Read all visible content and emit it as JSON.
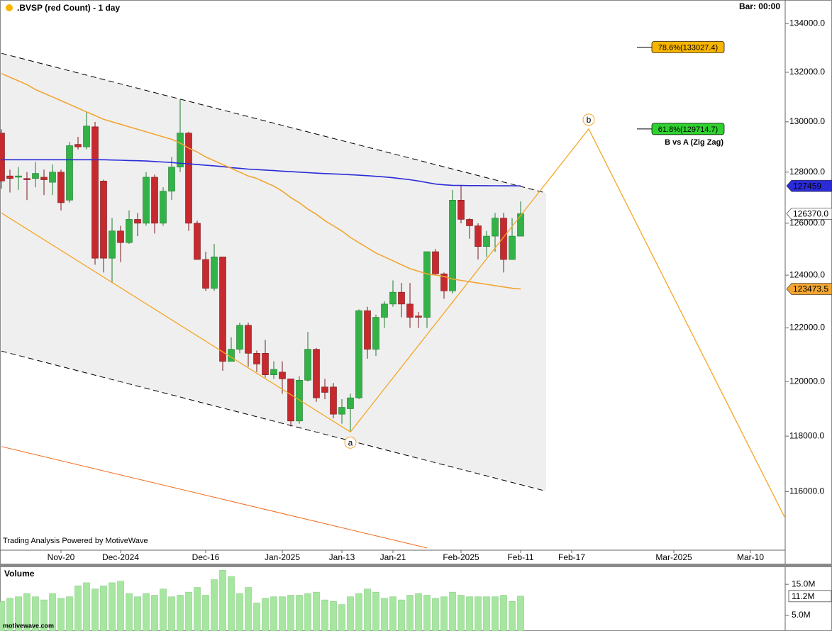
{
  "chart_data": [
    {
      "type": "candlestick",
      "title": ".BVSP (red Count) - 1 day",
      "bar_label": "Bar: 00:00",
      "footer": "Trading Analysis Powered by MotiveWave",
      "log_scale": true,
      "ylim": [
        113924,
        134973
      ],
      "yticks": [
        {
          "value": 116000,
          "label": "116000.0"
        },
        {
          "value": 118000,
          "label": "118000.0"
        },
        {
          "value": 120000,
          "label": "120000.0"
        },
        {
          "value": 122000,
          "label": "122000.0"
        },
        {
          "value": 124000,
          "label": "124000.0"
        },
        {
          "value": 126000,
          "label": "126000.0"
        },
        {
          "value": 128000,
          "label": "128000.0"
        },
        {
          "value": 130000,
          "label": "130000.0"
        },
        {
          "value": 132000,
          "label": "132000.0"
        },
        {
          "value": 134000,
          "label": "134000.0"
        }
      ],
      "categories": [
        null,
        null,
        null,
        null,
        null,
        null,
        null,
        "Nov-20",
        null,
        null,
        null,
        null,
        null,
        null,
        "Dec-2024",
        null,
        null,
        null,
        null,
        null,
        null,
        null,
        null,
        null,
        "Dec-16",
        null,
        null,
        null,
        null,
        null,
        null,
        null,
        null,
        "Jan-2025",
        null,
        null,
        null,
        null,
        null,
        null,
        "Jan-13",
        null,
        null,
        null,
        null,
        null,
        "Jan-21",
        null,
        null,
        null,
        null,
        null,
        null,
        null,
        "Feb-2025",
        null,
        null,
        null,
        null,
        null,
        null,
        "Feb-11",
        null,
        null,
        null,
        null,
        null,
        "Feb-17",
        null,
        null,
        null,
        null,
        null,
        null,
        null,
        null,
        null,
        null,
        null,
        "Mar-2025",
        null,
        null,
        null,
        null,
        null,
        null,
        null,
        null,
        "Mar-10",
        null,
        null,
        null,
        null
      ],
      "open": [
        129550,
        127850,
        127800,
        127750,
        127750,
        127800,
        127600,
        128000,
        126900,
        129100,
        129000,
        129800,
        127650,
        124650,
        125700,
        125250,
        126150,
        126000,
        127800,
        126000,
        127250,
        128200,
        129550,
        126000,
        124600,
        123500,
        124700,
        120750,
        121200,
        122100,
        121050,
        121050,
        120250,
        120350,
        120100,
        118550,
        120050,
        121200,
        119800,
        119800,
        118800,
        119000,
        119400,
        122650,
        121200,
        122400,
        122900,
        123350,
        122900,
        122450,
        122400,
        124900,
        124050,
        123400,
        126900,
        126150,
        125900,
        125100,
        125500,
        126200,
        124600,
        125500,
        null,
        null,
        null,
        null,
        null,
        null,
        null,
        null,
        null,
        null,
        null,
        null,
        null,
        null,
        null,
        null,
        null,
        null,
        null,
        null,
        null,
        null,
        null,
        null,
        null,
        null,
        null,
        null,
        null,
        null,
        null
      ],
      "high": [
        129700,
        128100,
        128200,
        128000,
        128400,
        128100,
        128300,
        128100,
        129200,
        129400,
        130400,
        130000,
        127700,
        126200,
        125900,
        126500,
        126400,
        128000,
        127900,
        127400,
        128600,
        130900,
        129600,
        126100,
        124900,
        125200,
        124700,
        121650,
        122200,
        122200,
        121150,
        121550,
        120750,
        120750,
        120100,
        120200,
        121850,
        121250,
        120100,
        119950,
        119350,
        119550,
        122700,
        122800,
        122500,
        123000,
        123800,
        123700,
        123700,
        122600,
        124900,
        125000,
        124100,
        127300,
        127500,
        126200,
        126000,
        125700,
        126400,
        126400,
        126200,
        126850,
        null,
        null,
        null,
        null,
        null,
        null,
        null,
        null,
        null,
        null,
        null,
        null,
        null,
        null,
        null,
        null,
        null,
        null,
        null,
        null,
        null,
        null,
        null,
        null,
        null,
        null,
        null,
        null,
        null,
        null,
        null
      ],
      "low": [
        127350,
        127200,
        127300,
        126900,
        127400,
        127100,
        127100,
        126500,
        126800,
        128900,
        128900,
        124400,
        124100,
        123700,
        124500,
        125200,
        125500,
        125900,
        125600,
        125900,
        126900,
        128000,
        125700,
        124600,
        123400,
        123400,
        120400,
        120750,
        121050,
        120550,
        120350,
        120150,
        120100,
        119550,
        118350,
        118450,
        120000,
        119250,
        119350,
        118650,
        118450,
        118150,
        119350,
        120850,
        120950,
        122000,
        122800,
        122400,
        122000,
        122000,
        122000,
        124000,
        123100,
        123300,
        126000,
        125400,
        124600,
        124700,
        124900,
        124100,
        124600,
        125500,
        null,
        null,
        null,
        null,
        null,
        null,
        null,
        null,
        null,
        null,
        null,
        null,
        null,
        null,
        null,
        null,
        null,
        null,
        null,
        null,
        null,
        null,
        null,
        null,
        null,
        null,
        null,
        null,
        null,
        null,
        null
      ],
      "close": [
        127650,
        127750,
        127850,
        127700,
        127950,
        127700,
        128000,
        126800,
        129050,
        129000,
        129830,
        124650,
        124650,
        125700,
        125250,
        126150,
        126000,
        127800,
        126000,
        127250,
        128200,
        129550,
        126000,
        124600,
        123500,
        124700,
        120750,
        121200,
        122100,
        121050,
        120650,
        120250,
        120450,
        120100,
        118550,
        120050,
        121200,
        119400,
        119600,
        118800,
        119050,
        119400,
        122650,
        121200,
        122400,
        122900,
        123350,
        122900,
        122400,
        122400,
        124900,
        124050,
        123400,
        126900,
        126150,
        125900,
        125100,
        125500,
        126200,
        124600,
        125500,
        126370,
        null,
        null,
        null,
        null,
        null,
        null,
        null,
        null,
        null,
        null,
        null,
        null,
        null,
        null,
        null,
        null,
        null,
        null,
        null,
        null,
        null,
        null,
        null,
        null,
        null,
        null,
        null,
        null,
        null,
        null,
        null
      ],
      "up_color": "#33b347",
      "down_color": "#c62a2e",
      "moving_averages": [
        {
          "color": "#2b2bd9",
          "values": [
            128490,
            128490,
            128490,
            128490,
            128490,
            128490,
            128490,
            128490,
            128490,
            128490,
            128490,
            128490,
            128490,
            128480,
            128470,
            128460,
            128450,
            128440,
            128420,
            128400,
            128380,
            128350,
            128330,
            128300,
            128270,
            128250,
            128220,
            128180,
            128150,
            128120,
            128100,
            128080,
            128060,
            128040,
            128020,
            128000,
            127980,
            127960,
            127945,
            127930,
            127915,
            127900,
            127880,
            127860,
            127835,
            127810,
            127780,
            127740,
            127700,
            127650,
            127590,
            127530,
            127500,
            127480,
            127475,
            127470,
            127468,
            127466,
            127464,
            127462,
            127460,
            127459,
            null,
            null,
            null,
            null,
            null,
            null,
            null,
            null,
            null,
            null,
            null,
            null,
            null,
            null,
            null,
            null,
            null,
            null,
            null,
            null,
            null,
            null,
            null,
            null,
            null,
            null,
            null,
            null,
            null,
            null,
            null
          ]
        },
        {
          "color": "#f2a531",
          "values": [
            131950,
            131800,
            131650,
            131500,
            131300,
            131150,
            131000,
            130850,
            130700,
            130550,
            130400,
            130250,
            130100,
            130000,
            129900,
            129800,
            129700,
            129600,
            129500,
            129400,
            129300,
            129150,
            128950,
            128800,
            128600,
            128450,
            128300,
            128150,
            128000,
            127850,
            127750,
            127600,
            127450,
            127250,
            127000,
            126800,
            126550,
            126350,
            126100,
            125900,
            125700,
            125450,
            125250,
            125050,
            124850,
            124700,
            124550,
            124400,
            124250,
            124150,
            124050,
            124000,
            123950,
            123850,
            123800,
            123750,
            123700,
            123650,
            123600,
            123550,
            123500,
            123473.5,
            null,
            null,
            null,
            null,
            null,
            null,
            null,
            null,
            null,
            null,
            null,
            null,
            null,
            null,
            null,
            null,
            null,
            null,
            null,
            null,
            null,
            null,
            null,
            null,
            null,
            null,
            null,
            null,
            null,
            null,
            null
          ]
        }
      ],
      "price_labels": [
        {
          "value": 127459,
          "label": "127459",
          "color": "#2b2bd9"
        },
        {
          "value": 126370,
          "label": "126370.0",
          "color": "#ffffff"
        },
        {
          "value": 123473.5,
          "label": "123473.5",
          "color": "#f2a531"
        }
      ],
      "zigzag": {
        "color": "#f5a623",
        "x": [
          0,
          41,
          69,
          92
        ],
        "values": [
          126400,
          118150,
          129714.7,
          115100
        ]
      },
      "wave_labels": [
        {
          "x": 41,
          "value": 118150,
          "label": "a"
        },
        {
          "x": 69,
          "value": 129714.7,
          "label": "b"
        }
      ],
      "fib_levels": [
        {
          "value": 133027.4,
          "label": "78.6%(133027.4)",
          "color": "#f7b500"
        },
        {
          "value": 129714.7,
          "label": "61.8%(129714.7)",
          "color": "#2fd12f",
          "note": "B vs A (Zig Zag)"
        }
      ],
      "trendlines": [
        {
          "color": "#000000",
          "dashed": true,
          "x": [
            0,
            64
          ],
          "values": [
            132774,
            127180
          ]
        },
        {
          "color": "#000000",
          "dashed": true,
          "x": [
            0,
            64
          ],
          "values": [
            121133,
            116015
          ]
        },
        {
          "color": "#f26b1d",
          "dashed": false,
          "x": [
            0,
            50
          ],
          "values": [
            117621,
            114000
          ]
        }
      ],
      "channel_fill": "#efefef"
    },
    {
      "type": "volume",
      "title": "Volume",
      "watermark": "motivewave.com",
      "color": "#a6e6a0",
      "ylim": [
        0,
        20.5
      ],
      "yticks": [
        {
          "value": 5,
          "label": "5.0M"
        },
        {
          "value": 15,
          "label": "15.0M"
        }
      ],
      "values": [
        9.5,
        10.5,
        11,
        12,
        11,
        10,
        12,
        10.5,
        11,
        14.5,
        15.5,
        13.5,
        14.5,
        15.5,
        16,
        12,
        11,
        12,
        11.5,
        13.5,
        11,
        11.5,
        12.5,
        14,
        11.5,
        16.5,
        19.5,
        17.5,
        12,
        14,
        9,
        10.5,
        11,
        11,
        11.5,
        11.5,
        12,
        12.5,
        10,
        9.5,
        8.5,
        11,
        12,
        13.5,
        12.5,
        10.5,
        11,
        10,
        11.5,
        12,
        11.5,
        10.5,
        11,
        12.5,
        11.5,
        11,
        11,
        11,
        11,
        11.5,
        9.5,
        11.2
      ],
      "last_label": {
        "value": 11.2,
        "label": "11.2M"
      }
    }
  ]
}
